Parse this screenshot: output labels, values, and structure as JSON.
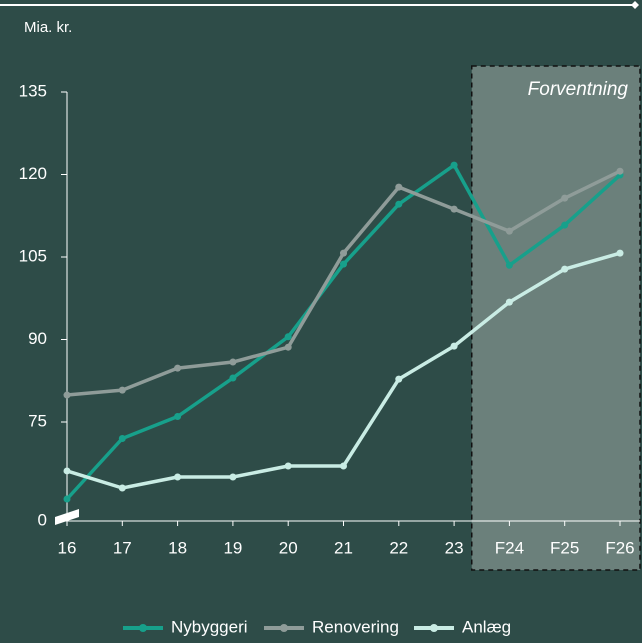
{
  "chart_data": {
    "type": "line",
    "y_unit_label": "Mia. kr.",
    "annotation": "Forventning",
    "categories": [
      "16",
      "17",
      "18",
      "19",
      "20",
      "21",
      "22",
      "23",
      "F24",
      "F25",
      "F26"
    ],
    "forecast_from": "F24",
    "series": [
      {
        "name": "Nybyggeri",
        "color": "#17a08b",
        "values": [
          61,
          72,
          76,
          83,
          90.5,
          103.7,
          114.6,
          121.7,
          103.5,
          110.8,
          119.9
        ]
      },
      {
        "name": "Renovering",
        "color": "#8f9c99",
        "values": [
          79.9,
          80.8,
          84.8,
          85.9,
          88.6,
          105.7,
          117.7,
          113.7,
          109.7,
          115.7,
          120.6
        ]
      },
      {
        "name": "Anlæg",
        "color": "#c9ece4",
        "values": [
          66.1,
          63,
          65,
          65,
          67,
          67,
          82.8,
          88.8,
          96.8,
          102.8,
          105.7
        ]
      }
    ],
    "ylim": [
      0,
      135
    ],
    "axis_break": [
      0,
      57
    ],
    "yticks": [
      0,
      75,
      90,
      105,
      120,
      135
    ]
  }
}
